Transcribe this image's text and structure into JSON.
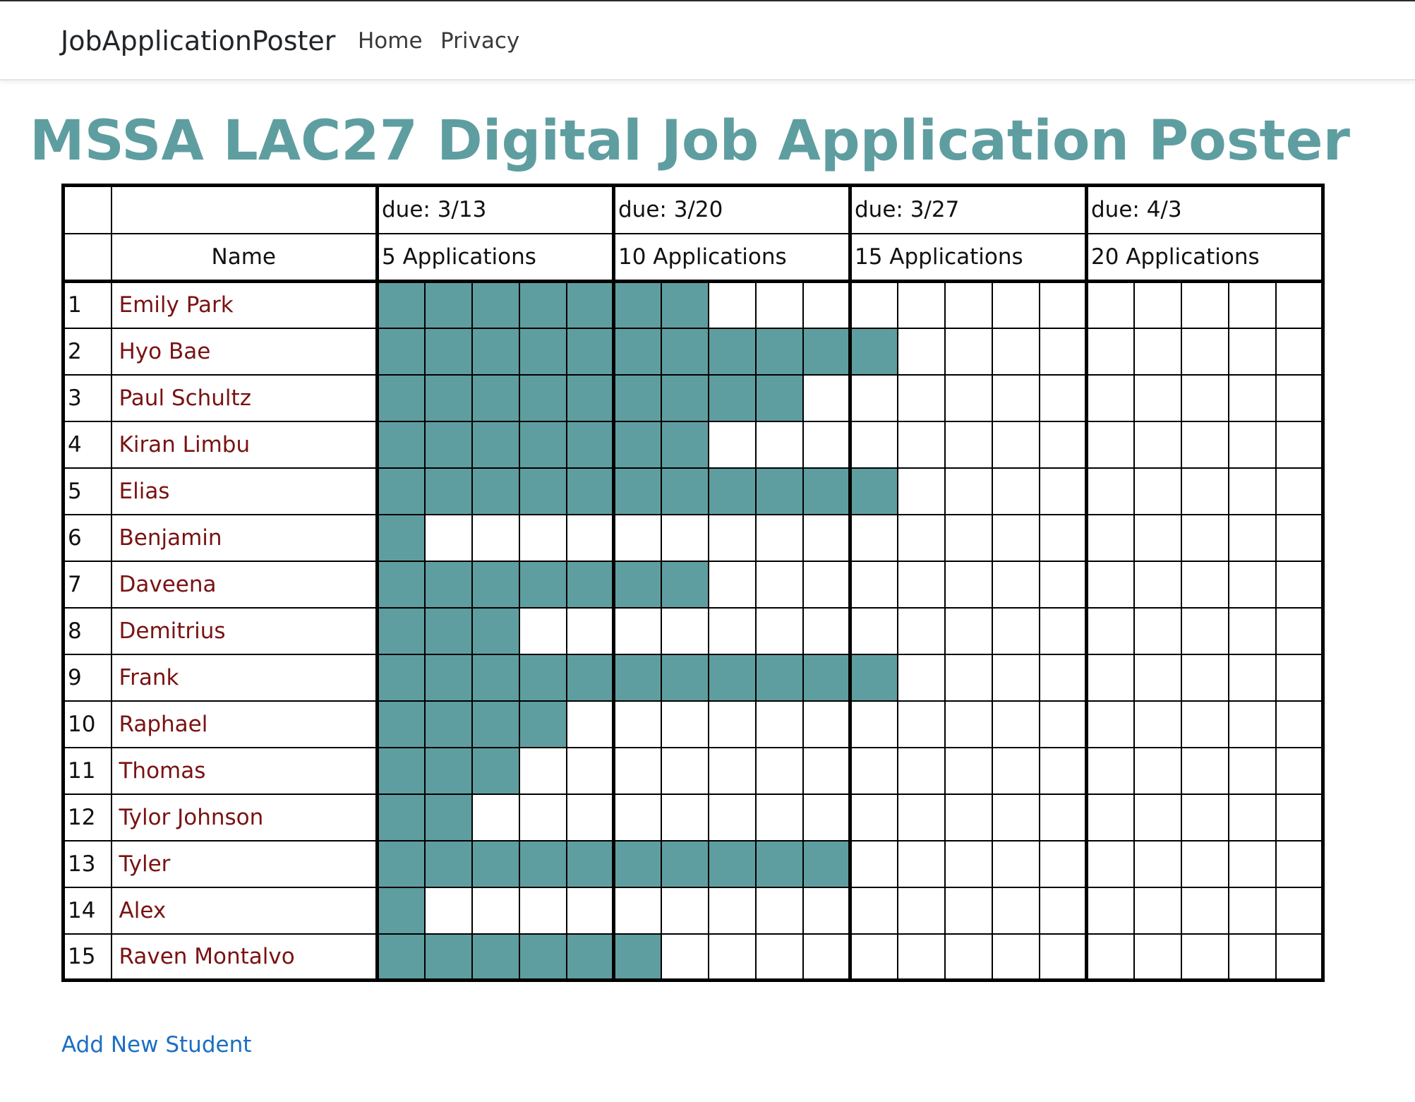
{
  "navbar": {
    "brand": "JobApplicationPoster",
    "links": [
      "Home",
      "Privacy"
    ]
  },
  "title": "MSSA LAC27 Digital Job Application Poster",
  "table": {
    "name_header": "Name",
    "groups": [
      {
        "due": "due: 3/13",
        "label": "5 Applications"
      },
      {
        "due": "due: 3/20",
        "label": "10 Applications"
      },
      {
        "due": "due: 3/27",
        "label": "15 Applications"
      },
      {
        "due": "due: 4/3",
        "label": "20 Applications"
      }
    ],
    "total_cells": 20,
    "students": [
      {
        "num": "1",
        "name": "Emily Park",
        "applications": 7
      },
      {
        "num": "2",
        "name": "Hyo Bae",
        "applications": 11
      },
      {
        "num": "3",
        "name": "Paul Schultz",
        "applications": 9
      },
      {
        "num": "4",
        "name": "Kiran Limbu",
        "applications": 7
      },
      {
        "num": "5",
        "name": "Elias",
        "applications": 11
      },
      {
        "num": "6",
        "name": "Benjamin",
        "applications": 1
      },
      {
        "num": "7",
        "name": "Daveena",
        "applications": 7
      },
      {
        "num": "8",
        "name": "Demitrius",
        "applications": 3
      },
      {
        "num": "9",
        "name": "Frank",
        "applications": 11
      },
      {
        "num": "10",
        "name": "Raphael",
        "applications": 4
      },
      {
        "num": "11",
        "name": "Thomas",
        "applications": 3
      },
      {
        "num": "12",
        "name": "Tylor Johnson",
        "applications": 2
      },
      {
        "num": "13",
        "name": "Tyler",
        "applications": 10
      },
      {
        "num": "14",
        "name": "Alex",
        "applications": 1
      },
      {
        "num": "15",
        "name": "Raven Montalvo",
        "applications": 6
      }
    ]
  },
  "add_link": "Add New Student",
  "colors": {
    "accent": "#5f9ea0",
    "name_text": "#7a1212",
    "link": "#1b6ec2"
  }
}
